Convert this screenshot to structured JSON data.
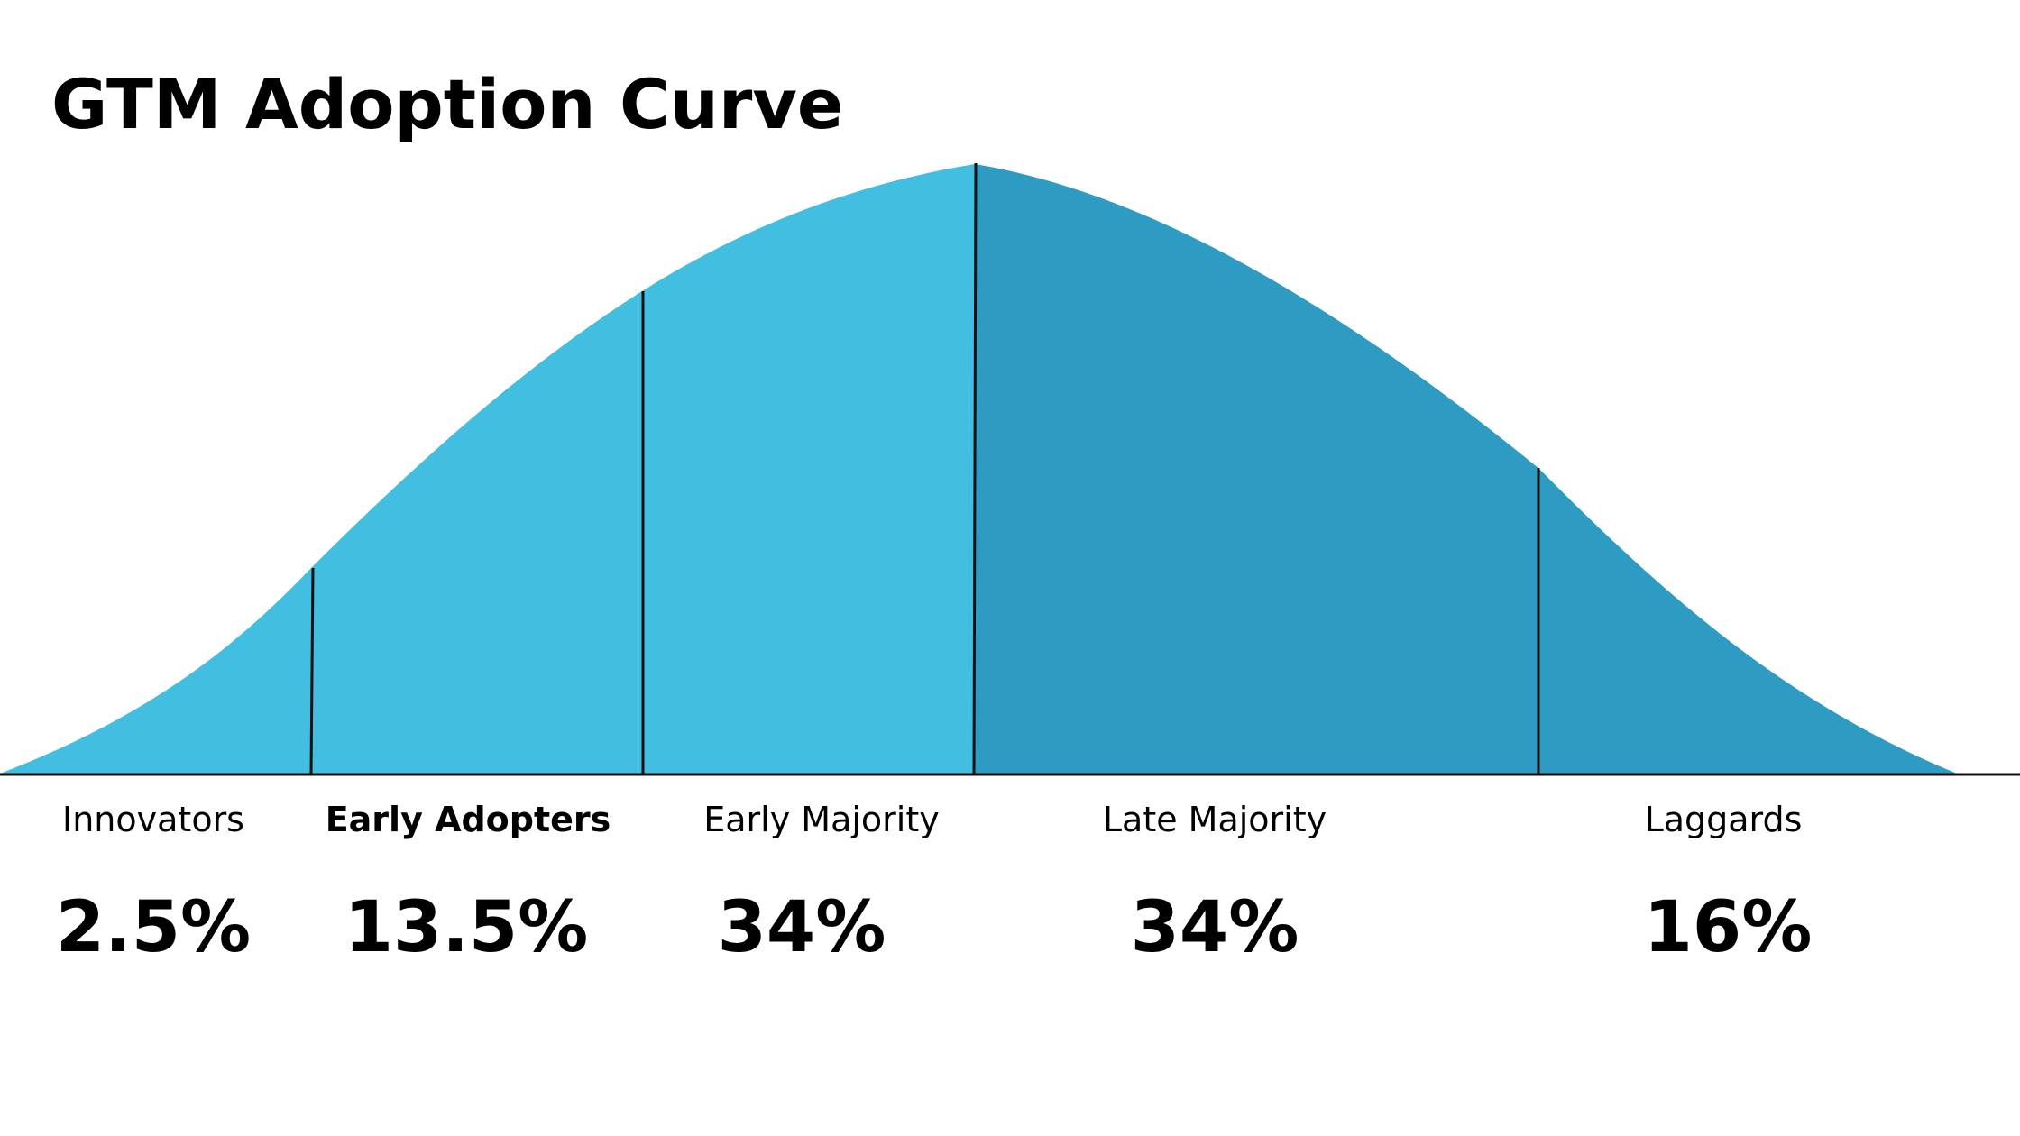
{
  "title": "GTM Adoption Curve",
  "colors": {
    "left_fill": "#41bee0",
    "right_fill": "#2e9bc2",
    "lines": "#111111",
    "text": "#000000"
  },
  "segments": [
    {
      "label": "Innovators",
      "value": "2.5%",
      "bold_label": false
    },
    {
      "label": "Early Adopters",
      "value": "13.5%",
      "bold_label": true
    },
    {
      "label": "Early Majority",
      "value": "34%",
      "bold_label": false
    },
    {
      "label": "Late Majority",
      "value": "34%",
      "bold_label": false
    },
    {
      "label": "Laggards",
      "value": "16%",
      "bold_label": false
    }
  ]
}
